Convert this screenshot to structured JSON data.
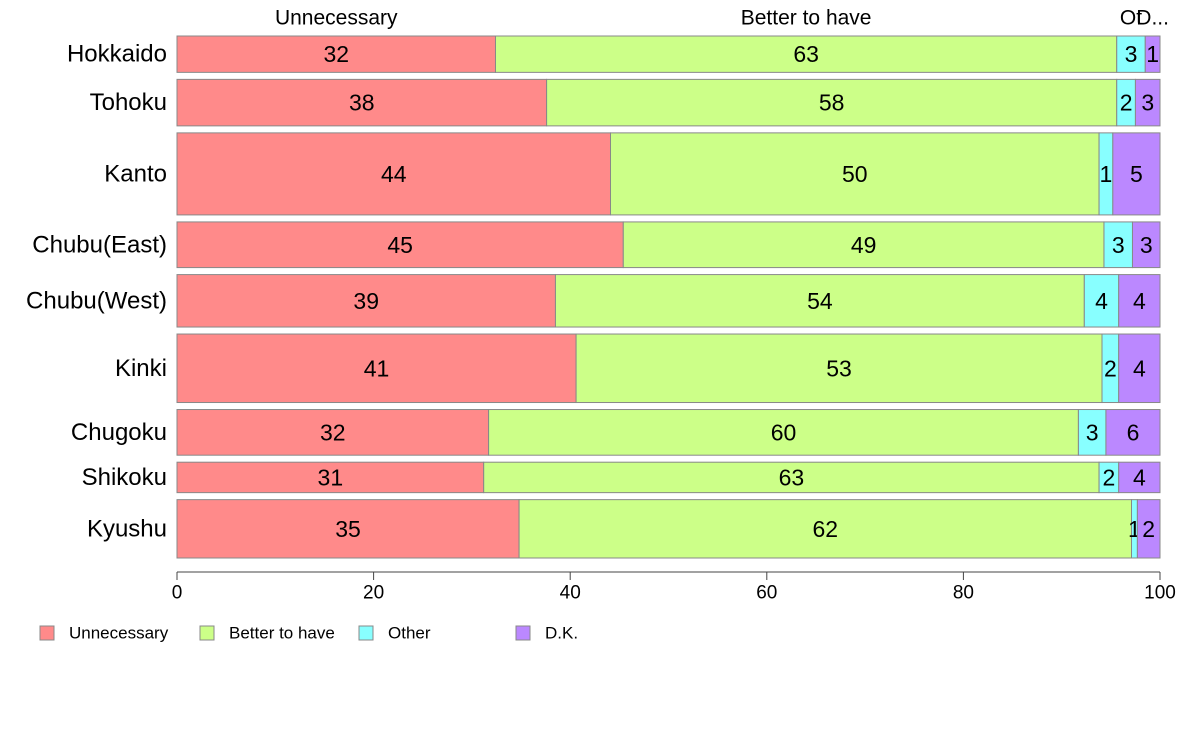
{
  "chart_data": {
    "type": "bar",
    "orientation": "horizontal",
    "stacked": true,
    "title": "",
    "xlabel": "",
    "ylabel": "",
    "xlim": [
      0,
      100
    ],
    "ticks": [
      "0",
      "20",
      "40",
      "60",
      "80",
      "100"
    ],
    "tick_values": [
      0,
      20,
      40,
      60,
      80,
      100
    ],
    "categories": [
      "Hokkaido",
      "Tohoku",
      "Kanto",
      "Chubu(East)",
      "Chubu(West)",
      "Kinki",
      "Chugoku",
      "Shikoku",
      "Kyushu"
    ],
    "sample_share": [
      0.043,
      0.055,
      0.097,
      0.054,
      0.062,
      0.081,
      0.054,
      0.036,
      0.069
    ],
    "series": [
      {
        "name": "Unnecessary",
        "color": "#ff8a8a",
        "values": [
          32.4,
          37.6,
          44.1,
          45.4,
          38.5,
          40.6,
          31.7,
          31.2,
          34.8
        ],
        "labels": [
          "32",
          "38",
          "44",
          "45",
          "39",
          "41",
          "32",
          "31",
          "35"
        ]
      },
      {
        "name": "Better to have",
        "color": "#ccff88",
        "values": [
          63.2,
          58.0,
          49.7,
          48.9,
          53.8,
          53.5,
          60.0,
          62.6,
          62.3
        ],
        "labels": [
          "63",
          "58",
          "50",
          "49",
          "54",
          "53",
          "60",
          "63",
          "62"
        ]
      },
      {
        "name": "Other",
        "color": "#88ffff",
        "values": [
          2.9,
          1.9,
          1.4,
          2.9,
          3.5,
          1.7,
          2.8,
          2.0,
          0.6
        ],
        "labels": [
          "3",
          "2",
          "1",
          "3",
          "4",
          "2",
          "3",
          "2",
          "1"
        ]
      },
      {
        "name": "D.K.",
        "color": "#bb88ff",
        "values": [
          1.5,
          2.5,
          4.8,
          2.8,
          4.2,
          4.2,
          5.5,
          4.2,
          2.3
        ],
        "labels": [
          "1",
          "3",
          "5",
          "3",
          "4",
          "4",
          "6",
          "4",
          "2"
        ]
      }
    ],
    "top_labels": [
      "Unnecessary",
      "Better to have",
      "Ot",
      "D..."
    ],
    "legend": {
      "placement": "bottom-left",
      "items": [
        "Unnecessary",
        "Better to have",
        "Other",
        "D.K."
      ]
    },
    "grid": false
  }
}
